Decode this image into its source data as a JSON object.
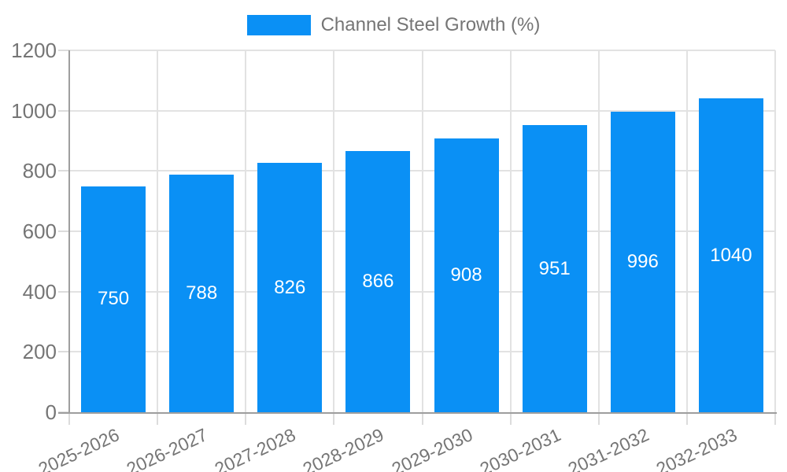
{
  "chart_data": {
    "type": "bar",
    "title": "Channel Steel Growth (%)",
    "categories": [
      "2025-2026",
      "2026-2027",
      "2027-2028",
      "2028-2029",
      "2029-2030",
      "2030-2031",
      "2031-2032",
      "2032-2033"
    ],
    "values": [
      750,
      788,
      826,
      866,
      908,
      951,
      996,
      1040
    ],
    "series": [
      {
        "name": "Channel Steel Growth (%)",
        "values": [
          750,
          788,
          826,
          866,
          908,
          951,
          996,
          1040
        ]
      }
    ],
    "xlabel": "",
    "ylabel": "",
    "ylim": [
      0,
      1200
    ],
    "yticks": [
      0,
      200,
      400,
      600,
      800,
      1000,
      1200
    ],
    "grid": true,
    "legend_position": "top-center",
    "bar_value_labels_inside": true,
    "x_label_rotation_deg": -25,
    "colors": {
      "bar": "#0a90f5",
      "bar_value_text": "#ffffff",
      "axis_line": "#9e9e9e",
      "gridline": "#e2e2e2",
      "tick_mark": "#dcdcdc",
      "label_text": "#757575",
      "background": "#ffffff"
    }
  }
}
